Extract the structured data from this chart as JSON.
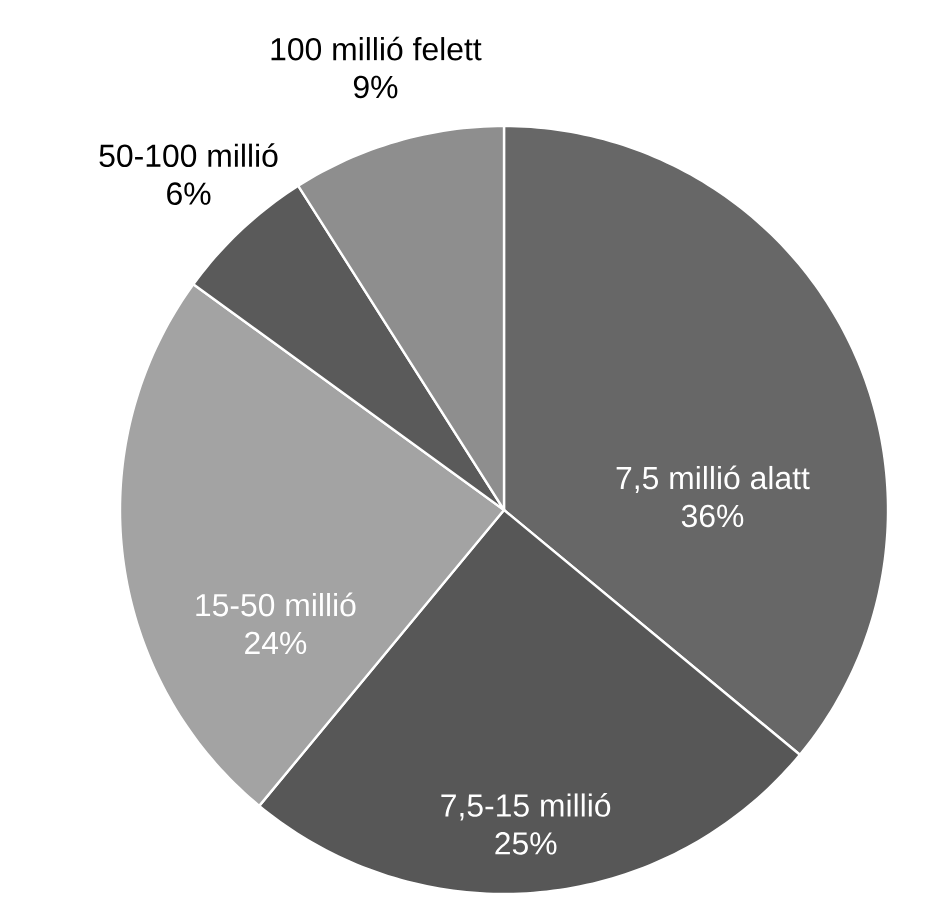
{
  "chart_data": {
    "type": "pie",
    "categories": [
      "7,5 millió alatt",
      "7,5-15 millió",
      "15-50 millió",
      "50-100 millió",
      "100 millió felett"
    ],
    "values": [
      36,
      25,
      24,
      6,
      9
    ],
    "value_labels": [
      "36%",
      "25%",
      "24%",
      "6%",
      "9%"
    ],
    "colors": [
      "#676767",
      "#575757",
      "#a3a3a3",
      "#5a5a5a",
      "#8e8e8e"
    ]
  }
}
